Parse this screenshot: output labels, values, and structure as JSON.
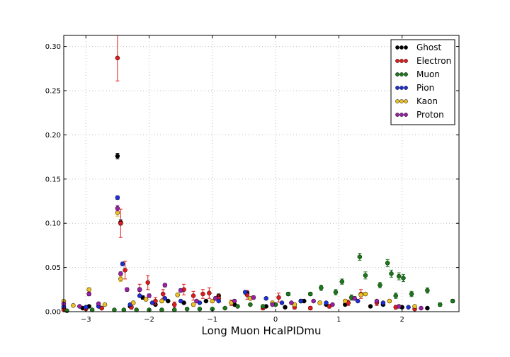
{
  "chart_data": {
    "type": "scatter",
    "title": "",
    "xlabel": "Long Muon HcalPIDmu",
    "ylabel": "",
    "xlim": [
      -3.35,
      2.9
    ],
    "ylim": [
      0.0,
      0.3125
    ],
    "x_ticks": [
      -3,
      -2,
      -1,
      0,
      1,
      2
    ],
    "x_tick_labels": [
      "−3",
      "−2",
      "−1",
      "0",
      "1",
      "2"
    ],
    "y_ticks": [
      0.0,
      0.05,
      0.1,
      0.15,
      0.2,
      0.25,
      0.3
    ],
    "y_tick_labels": [
      "0.00",
      "0.05",
      "0.10",
      "0.15",
      "0.20",
      "0.25",
      "0.30"
    ],
    "grid": true,
    "legend_position": "top-right",
    "series": [
      {
        "name": "Ghost",
        "color": "#000000",
        "points": [
          {
            "x": -3.35,
            "y": 0.004,
            "err": 0.001
          },
          {
            "x": -3.05,
            "y": 0.004,
            "err": 0.001
          },
          {
            "x": -2.95,
            "y": 0.006,
            "err": 0.001
          },
          {
            "x": -2.75,
            "y": 0.004,
            "err": 0.001
          },
          {
            "x": -2.5,
            "y": 0.176,
            "err": 0.003
          },
          {
            "x": -2.45,
            "y": 0.101,
            "err": 0.003
          },
          {
            "x": -2.3,
            "y": 0.006,
            "err": 0.001
          },
          {
            "x": -2.1,
            "y": 0.016,
            "err": 0.002
          },
          {
            "x": -1.9,
            "y": 0.008,
            "err": 0.001
          },
          {
            "x": -1.7,
            "y": 0.012,
            "err": 0.001
          },
          {
            "x": -1.45,
            "y": 0.01,
            "err": 0.001
          },
          {
            "x": -1.1,
            "y": 0.012,
            "err": 0.001
          },
          {
            "x": -0.9,
            "y": 0.018,
            "err": 0.002
          },
          {
            "x": -0.65,
            "y": 0.008,
            "err": 0.001
          },
          {
            "x": -0.45,
            "y": 0.021,
            "err": 0.002
          },
          {
            "x": -0.15,
            "y": 0.006,
            "err": 0.001
          },
          {
            "x": 0.15,
            "y": 0.005,
            "err": 0.001
          },
          {
            "x": 0.45,
            "y": 0.012,
            "err": 0.001
          },
          {
            "x": 0.8,
            "y": 0.008,
            "err": 0.001
          },
          {
            "x": 1.1,
            "y": 0.008,
            "err": 0.001
          },
          {
            "x": 1.5,
            "y": 0.006,
            "err": 0.001
          },
          {
            "x": 1.7,
            "y": 0.008,
            "err": 0.001
          },
          {
            "x": 2.0,
            "y": 0.005,
            "err": 0.001
          },
          {
            "x": 2.4,
            "y": 0.004,
            "err": 0.001
          }
        ]
      },
      {
        "name": "Electron",
        "color": "#e41a1c",
        "points": [
          {
            "x": -3.35,
            "y": 0.002,
            "err": 0.001
          },
          {
            "x": -3.0,
            "y": 0.003,
            "err": 0.001
          },
          {
            "x": -2.75,
            "y": 0.004,
            "err": 0.001
          },
          {
            "x": -2.5,
            "y": 0.287,
            "err": 0.026
          },
          {
            "x": -2.45,
            "y": 0.1,
            "err": 0.016
          },
          {
            "x": -2.38,
            "y": 0.047,
            "err": 0.01
          },
          {
            "x": -2.28,
            "y": 0.005,
            "err": 0.002
          },
          {
            "x": -2.15,
            "y": 0.025,
            "err": 0.006
          },
          {
            "x": -2.02,
            "y": 0.033,
            "err": 0.008
          },
          {
            "x": -1.9,
            "y": 0.012,
            "err": 0.004
          },
          {
            "x": -1.78,
            "y": 0.02,
            "err": 0.005
          },
          {
            "x": -1.6,
            "y": 0.008,
            "err": 0.003
          },
          {
            "x": -1.45,
            "y": 0.025,
            "err": 0.006
          },
          {
            "x": -1.3,
            "y": 0.018,
            "err": 0.005
          },
          {
            "x": -1.15,
            "y": 0.02,
            "err": 0.005
          },
          {
            "x": -1.05,
            "y": 0.021,
            "err": 0.006
          },
          {
            "x": -0.9,
            "y": 0.015,
            "err": 0.004
          },
          {
            "x": -0.7,
            "y": 0.01,
            "err": 0.003
          },
          {
            "x": -0.45,
            "y": 0.019,
            "err": 0.005
          },
          {
            "x": -0.2,
            "y": 0.004,
            "err": 0.002
          },
          {
            "x": 0.05,
            "y": 0.016,
            "err": 0.005
          },
          {
            "x": 0.3,
            "y": 0.005,
            "err": 0.002
          },
          {
            "x": 0.55,
            "y": 0.004,
            "err": 0.002
          },
          {
            "x": 0.85,
            "y": 0.006,
            "err": 0.002
          },
          {
            "x": 1.15,
            "y": 0.01,
            "err": 0.003
          },
          {
            "x": 1.35,
            "y": 0.02,
            "err": 0.005
          },
          {
            "x": 1.6,
            "y": 0.01,
            "err": 0.003
          },
          {
            "x": 1.9,
            "y": 0.005,
            "err": 0.002
          },
          {
            "x": 2.2,
            "y": 0.003,
            "err": 0.001
          }
        ]
      },
      {
        "name": "Muon",
        "color": "#1a7a1a",
        "points": [
          {
            "x": -3.3,
            "y": 0.001,
            "err": 0.0005
          },
          {
            "x": -2.9,
            "y": 0.002,
            "err": 0.0005
          },
          {
            "x": -2.55,
            "y": 0.002,
            "err": 0.0005
          },
          {
            "x": -2.4,
            "y": 0.002,
            "err": 0.0005
          },
          {
            "x": -2.2,
            "y": 0.002,
            "err": 0.0005
          },
          {
            "x": -2.0,
            "y": 0.002,
            "err": 0.0005
          },
          {
            "x": -1.8,
            "y": 0.002,
            "err": 0.0005
          },
          {
            "x": -1.6,
            "y": 0.002,
            "err": 0.0005
          },
          {
            "x": -1.4,
            "y": 0.003,
            "err": 0.0005
          },
          {
            "x": -1.2,
            "y": 0.003,
            "err": 0.0005
          },
          {
            "x": -1.0,
            "y": 0.003,
            "err": 0.0005
          },
          {
            "x": -0.8,
            "y": 0.004,
            "err": 0.001
          },
          {
            "x": -0.6,
            "y": 0.006,
            "err": 0.001
          },
          {
            "x": -0.4,
            "y": 0.008,
            "err": 0.001
          },
          {
            "x": -0.2,
            "y": 0.006,
            "err": 0.001
          },
          {
            "x": 0.0,
            "y": 0.008,
            "err": 0.001
          },
          {
            "x": 0.2,
            "y": 0.02,
            "err": 0.002
          },
          {
            "x": 0.4,
            "y": 0.012,
            "err": 0.002
          },
          {
            "x": 0.55,
            "y": 0.02,
            "err": 0.002
          },
          {
            "x": 0.72,
            "y": 0.027,
            "err": 0.003
          },
          {
            "x": 0.95,
            "y": 0.022,
            "err": 0.003
          },
          {
            "x": 1.05,
            "y": 0.034,
            "err": 0.003
          },
          {
            "x": 1.2,
            "y": 0.016,
            "err": 0.003
          },
          {
            "x": 1.33,
            "y": 0.062,
            "err": 0.004
          },
          {
            "x": 1.42,
            "y": 0.041,
            "err": 0.004
          },
          {
            "x": 1.65,
            "y": 0.03,
            "err": 0.003
          },
          {
            "x": 1.77,
            "y": 0.055,
            "err": 0.004
          },
          {
            "x": 1.83,
            "y": 0.043,
            "err": 0.004
          },
          {
            "x": 1.9,
            "y": 0.018,
            "err": 0.003
          },
          {
            "x": 1.95,
            "y": 0.04,
            "err": 0.004
          },
          {
            "x": 2.02,
            "y": 0.038,
            "err": 0.004
          },
          {
            "x": 2.15,
            "y": 0.02,
            "err": 0.003
          },
          {
            "x": 2.4,
            "y": 0.024,
            "err": 0.003
          },
          {
            "x": 2.6,
            "y": 0.008,
            "err": 0.002
          },
          {
            "x": 2.8,
            "y": 0.012,
            "err": 0.002
          }
        ]
      },
      {
        "name": "Pion",
        "color": "#1f2fd8",
        "points": [
          {
            "x": -3.35,
            "y": 0.006,
            "err": 0.001
          },
          {
            "x": -3.0,
            "y": 0.005,
            "err": 0.001
          },
          {
            "x": -2.8,
            "y": 0.006,
            "err": 0.001
          },
          {
            "x": -2.5,
            "y": 0.129,
            "err": 0.002
          },
          {
            "x": -2.42,
            "y": 0.054,
            "err": 0.002
          },
          {
            "x": -2.3,
            "y": 0.008,
            "err": 0.001
          },
          {
            "x": -2.15,
            "y": 0.018,
            "err": 0.001
          },
          {
            "x": -1.95,
            "y": 0.01,
            "err": 0.001
          },
          {
            "x": -1.75,
            "y": 0.015,
            "err": 0.001
          },
          {
            "x": -1.5,
            "y": 0.012,
            "err": 0.001
          },
          {
            "x": -1.2,
            "y": 0.01,
            "err": 0.001
          },
          {
            "x": -0.9,
            "y": 0.012,
            "err": 0.001
          },
          {
            "x": -0.48,
            "y": 0.022,
            "err": 0.002
          },
          {
            "x": -0.15,
            "y": 0.015,
            "err": 0.001
          },
          {
            "x": 0.1,
            "y": 0.01,
            "err": 0.001
          },
          {
            "x": 0.4,
            "y": 0.012,
            "err": 0.001
          },
          {
            "x": 0.8,
            "y": 0.01,
            "err": 0.001
          },
          {
            "x": 1.3,
            "y": 0.012,
            "err": 0.001
          },
          {
            "x": 1.7,
            "y": 0.01,
            "err": 0.001
          },
          {
            "x": 2.1,
            "y": 0.005,
            "err": 0.001
          }
        ]
      },
      {
        "name": "Kaon",
        "color": "#f0c020",
        "points": [
          {
            "x": -3.35,
            "y": 0.012,
            "err": 0.001
          },
          {
            "x": -3.2,
            "y": 0.007,
            "err": 0.001
          },
          {
            "x": -2.95,
            "y": 0.025,
            "err": 0.002
          },
          {
            "x": -2.7,
            "y": 0.008,
            "err": 0.001
          },
          {
            "x": -2.5,
            "y": 0.112,
            "err": 0.004
          },
          {
            "x": -2.45,
            "y": 0.037,
            "err": 0.003
          },
          {
            "x": -2.25,
            "y": 0.01,
            "err": 0.002
          },
          {
            "x": -2.05,
            "y": 0.014,
            "err": 0.002
          },
          {
            "x": -1.8,
            "y": 0.012,
            "err": 0.002
          },
          {
            "x": -1.55,
            "y": 0.019,
            "err": 0.002
          },
          {
            "x": -1.3,
            "y": 0.008,
            "err": 0.002
          },
          {
            "x": -1.0,
            "y": 0.012,
            "err": 0.002
          },
          {
            "x": -0.7,
            "y": 0.01,
            "err": 0.002
          },
          {
            "x": -0.4,
            "y": 0.015,
            "err": 0.002
          },
          {
            "x": -0.05,
            "y": 0.01,
            "err": 0.002
          },
          {
            "x": 0.3,
            "y": 0.008,
            "err": 0.002
          },
          {
            "x": 0.7,
            "y": 0.01,
            "err": 0.002
          },
          {
            "x": 1.1,
            "y": 0.012,
            "err": 0.002
          },
          {
            "x": 1.35,
            "y": 0.019,
            "err": 0.002
          },
          {
            "x": 1.42,
            "y": 0.02,
            "err": 0.002
          },
          {
            "x": 1.8,
            "y": 0.012,
            "err": 0.002
          },
          {
            "x": 2.2,
            "y": 0.006,
            "err": 0.001
          }
        ]
      },
      {
        "name": "Proton",
        "color": "#9b1fa8",
        "points": [
          {
            "x": -3.35,
            "y": 0.009,
            "err": 0.001
          },
          {
            "x": -3.1,
            "y": 0.006,
            "err": 0.001
          },
          {
            "x": -2.95,
            "y": 0.02,
            "err": 0.002
          },
          {
            "x": -2.8,
            "y": 0.009,
            "err": 0.001
          },
          {
            "x": -2.5,
            "y": 0.117,
            "err": 0.003
          },
          {
            "x": -2.45,
            "y": 0.043,
            "err": 0.002
          },
          {
            "x": -2.35,
            "y": 0.025,
            "err": 0.002
          },
          {
            "x": -2.15,
            "y": 0.025,
            "err": 0.002
          },
          {
            "x": -2.0,
            "y": 0.018,
            "err": 0.002
          },
          {
            "x": -1.75,
            "y": 0.03,
            "err": 0.002
          },
          {
            "x": -1.5,
            "y": 0.024,
            "err": 0.002
          },
          {
            "x": -1.25,
            "y": 0.012,
            "err": 0.001
          },
          {
            "x": -0.95,
            "y": 0.015,
            "err": 0.002
          },
          {
            "x": -0.65,
            "y": 0.012,
            "err": 0.001
          },
          {
            "x": -0.35,
            "y": 0.016,
            "err": 0.002
          },
          {
            "x": -0.05,
            "y": 0.008,
            "err": 0.001
          },
          {
            "x": 0.25,
            "y": 0.01,
            "err": 0.001
          },
          {
            "x": 0.6,
            "y": 0.012,
            "err": 0.001
          },
          {
            "x": 0.9,
            "y": 0.008,
            "err": 0.001
          },
          {
            "x": 1.25,
            "y": 0.015,
            "err": 0.002
          },
          {
            "x": 1.6,
            "y": 0.012,
            "err": 0.001
          },
          {
            "x": 1.95,
            "y": 0.006,
            "err": 0.001
          },
          {
            "x": 2.3,
            "y": 0.004,
            "err": 0.001
          }
        ]
      }
    ]
  }
}
